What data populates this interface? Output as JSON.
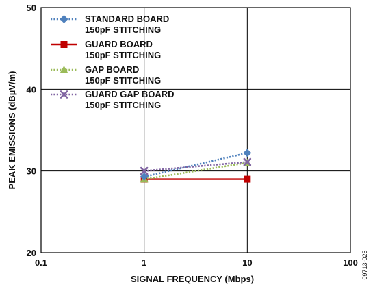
{
  "chart_data": {
    "type": "line",
    "xlabel": "SIGNAL FREQUENCY (Mbps)",
    "ylabel": "PEAK EMISSIONS (dBµV/m)",
    "x_scale": "log",
    "xlim": [
      0.1,
      100
    ],
    "ylim": [
      20,
      50
    ],
    "x_ticks": [
      0.1,
      1,
      10,
      100
    ],
    "x_tick_labels": [
      "0.1",
      "1",
      "10",
      "100"
    ],
    "y_ticks": [
      20,
      30,
      40,
      50
    ],
    "y_tick_labels": [
      "20",
      "30",
      "40",
      "50"
    ],
    "grid": true,
    "legend_position": "top-left",
    "series": [
      {
        "name": "STANDARD BOARD",
        "name_line2": "150pF STITCHING",
        "x": [
          1,
          10
        ],
        "values": [
          29.3,
          32.2
        ],
        "color": "#4f81bd",
        "line_style": "dotted",
        "marker": "diamond"
      },
      {
        "name": "GUARD BOARD",
        "name_line2": "150pF STITCHING",
        "x": [
          1,
          10
        ],
        "values": [
          29.0,
          29.0
        ],
        "color": "#c00000",
        "line_style": "solid",
        "marker": "square"
      },
      {
        "name": "GAP BOARD",
        "name_line2": "150pF STITCHING",
        "x": [
          1,
          10
        ],
        "values": [
          29.0,
          31.0
        ],
        "color": "#9bbb59",
        "line_style": "dotted",
        "marker": "triangle"
      },
      {
        "name": "GUARD GAP BOARD",
        "name_line2": "150pF STITCHING",
        "x": [
          1,
          10
        ],
        "values": [
          30.0,
          31.1
        ],
        "color": "#8064a2",
        "line_style": "dotted",
        "marker": "x"
      }
    ]
  },
  "figure_code": "09713-025"
}
